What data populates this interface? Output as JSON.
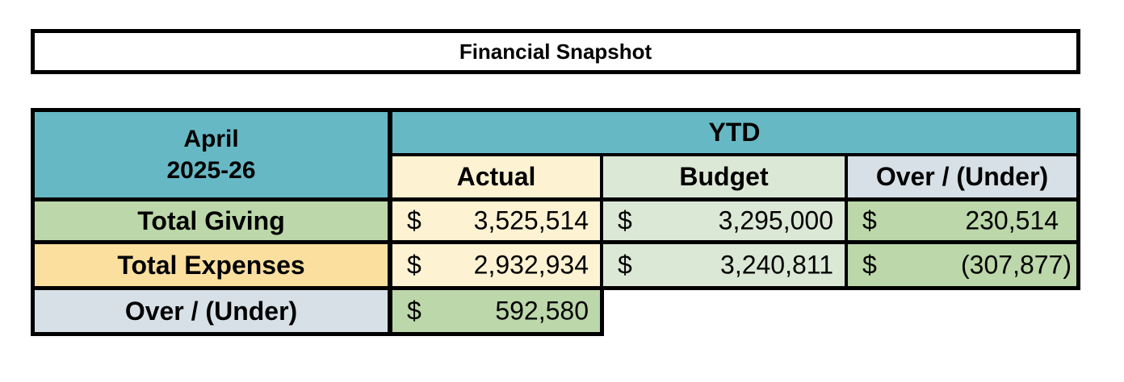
{
  "title": "Financial Snapshot",
  "header": {
    "period_month": "April",
    "period_year": "2025-26",
    "ytd_label": "YTD",
    "columns": [
      "Actual",
      "Budget",
      "Over / (Under)"
    ]
  },
  "rows": [
    {
      "label": "Total Giving",
      "actual": {
        "currency": "$",
        "amount": "3,525,514"
      },
      "budget": {
        "currency": "$",
        "amount": "3,295,000"
      },
      "variance": {
        "currency": "$",
        "amount": "230,514"
      }
    },
    {
      "label": "Total Expenses",
      "actual": {
        "currency": "$",
        "amount": "2,932,934"
      },
      "budget": {
        "currency": "$",
        "amount": "3,240,811"
      },
      "variance": {
        "currency": "$",
        "amount": "(307,877)"
      }
    },
    {
      "label": "Over / (Under)",
      "actual": {
        "currency": "$",
        "amount": "592,580"
      }
    }
  ],
  "colors": {
    "header_teal": "#67b8c5",
    "actual_cream": "#fdf2d2",
    "budget_sage": "#dce8d6",
    "variance_gray": "#d6e0e6",
    "giving_green": "#bcd7a9",
    "expenses_yellow": "#fadf9e"
  }
}
